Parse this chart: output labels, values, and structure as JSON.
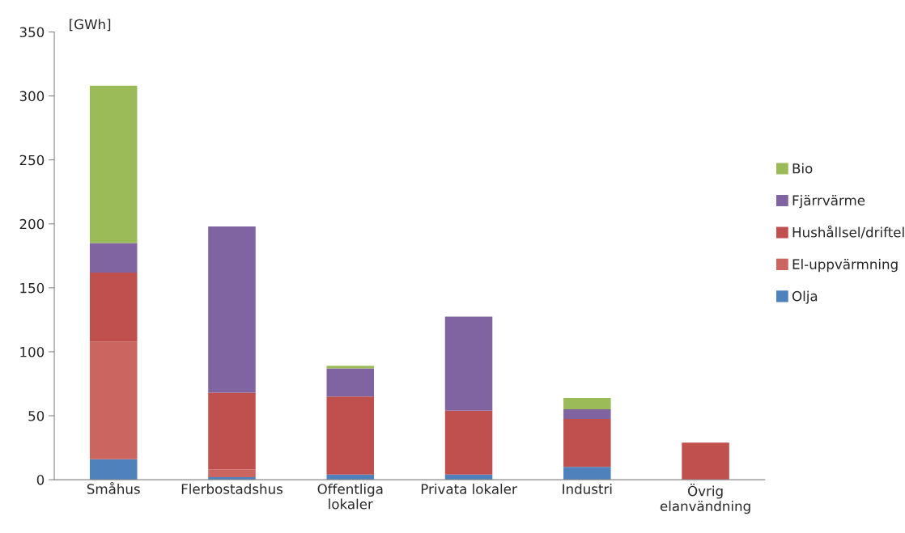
{
  "chart_data": {
    "type": "bar",
    "stacked": true,
    "ylabel": "[GWh]",
    "categories": [
      "Småhus",
      "Flerbostadshus",
      "Offentliga\nlokaler",
      "Privata lokaler",
      "Industri",
      "Övrig\nelanvändning"
    ],
    "series": [
      {
        "name": "Olja",
        "color": "#4f81bd",
        "values": [
          16,
          2,
          4,
          4,
          10,
          0
        ]
      },
      {
        "name": "El-uppvärmning",
        "color": "#cb6560",
        "values": [
          92,
          6,
          0,
          0,
          0,
          0
        ]
      },
      {
        "name": "Hushållsel/driftel",
        "color": "#c0504d",
        "values": [
          54,
          60,
          61,
          50,
          37.5,
          29
        ]
      },
      {
        "name": "Fjärrvärme",
        "color": "#8064a2",
        "values": [
          23,
          130,
          22,
          73.5,
          7.5,
          0
        ]
      },
      {
        "name": "Bio",
        "color": "#9bbb59",
        "values": [
          123,
          0,
          2,
          0,
          9,
          0
        ]
      }
    ],
    "ylim": [
      0,
      350
    ],
    "yticks": [
      0,
      50,
      100,
      150,
      200,
      250,
      300,
      350
    ],
    "legend": "right"
  }
}
